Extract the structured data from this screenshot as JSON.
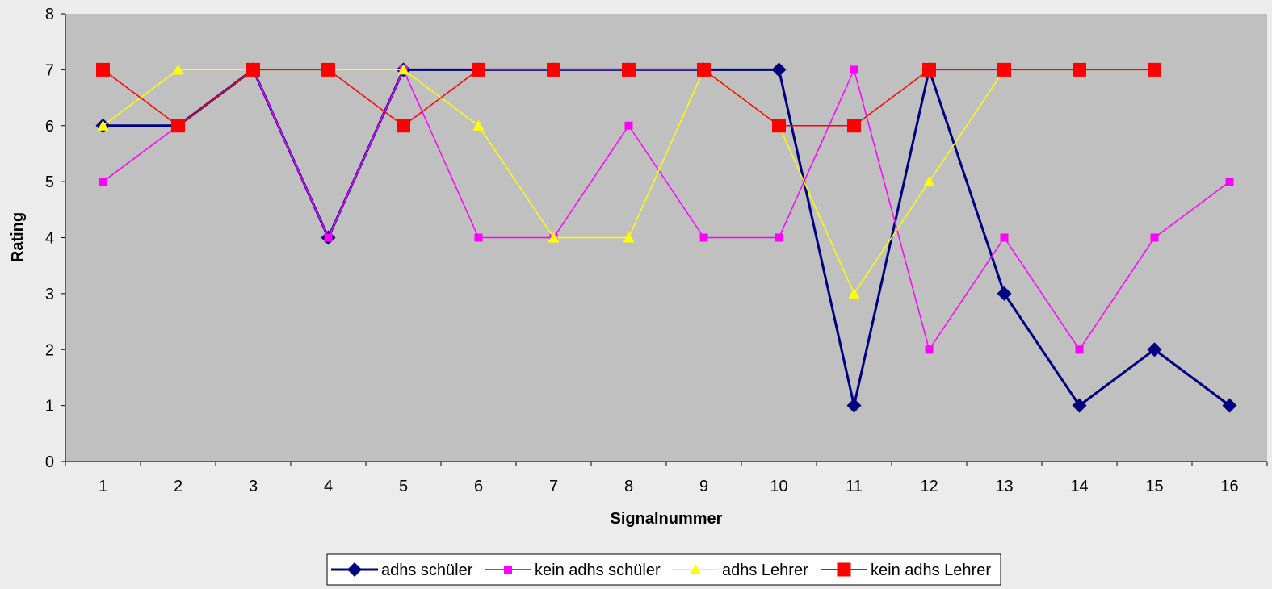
{
  "chart_data": {
    "type": "line",
    "xlabel": "Signalnummer",
    "ylabel": "Rating",
    "x": [
      1,
      2,
      3,
      4,
      5,
      6,
      7,
      8,
      9,
      10,
      11,
      12,
      13,
      14,
      15,
      16
    ],
    "ylim": [
      0,
      8
    ],
    "yticks": [
      0,
      1,
      2,
      3,
      4,
      5,
      6,
      7,
      8
    ],
    "grid": false,
    "legend": "bottom",
    "plot_background": "#c0c0c0",
    "series": [
      {
        "name": "adhs schüler",
        "color": "#000080",
        "marker": "diamond",
        "values": [
          6,
          6,
          7,
          4,
          7,
          7,
          7,
          7,
          7,
          7,
          1,
          7,
          3,
          1,
          2,
          1
        ]
      },
      {
        "name": "kein adhs schüler",
        "color": "#ff00ff",
        "marker": "square",
        "values": [
          5,
          6,
          7,
          4,
          7,
          4,
          4,
          6,
          4,
          4,
          7,
          2,
          4,
          2,
          4,
          5
        ]
      },
      {
        "name": "adhs Lehrer",
        "color": "#ffff00",
        "marker": "triangle",
        "values": [
          6,
          7,
          7,
          7,
          7,
          6,
          4,
          4,
          7,
          6,
          3,
          5,
          7,
          7,
          7,
          null
        ]
      },
      {
        "name": "kein adhs Lehrer",
        "color": "#ff0000",
        "marker": "big-square",
        "values": [
          7,
          6,
          7,
          7,
          6,
          7,
          7,
          7,
          7,
          6,
          6,
          7,
          7,
          7,
          7,
          null
        ]
      }
    ]
  }
}
